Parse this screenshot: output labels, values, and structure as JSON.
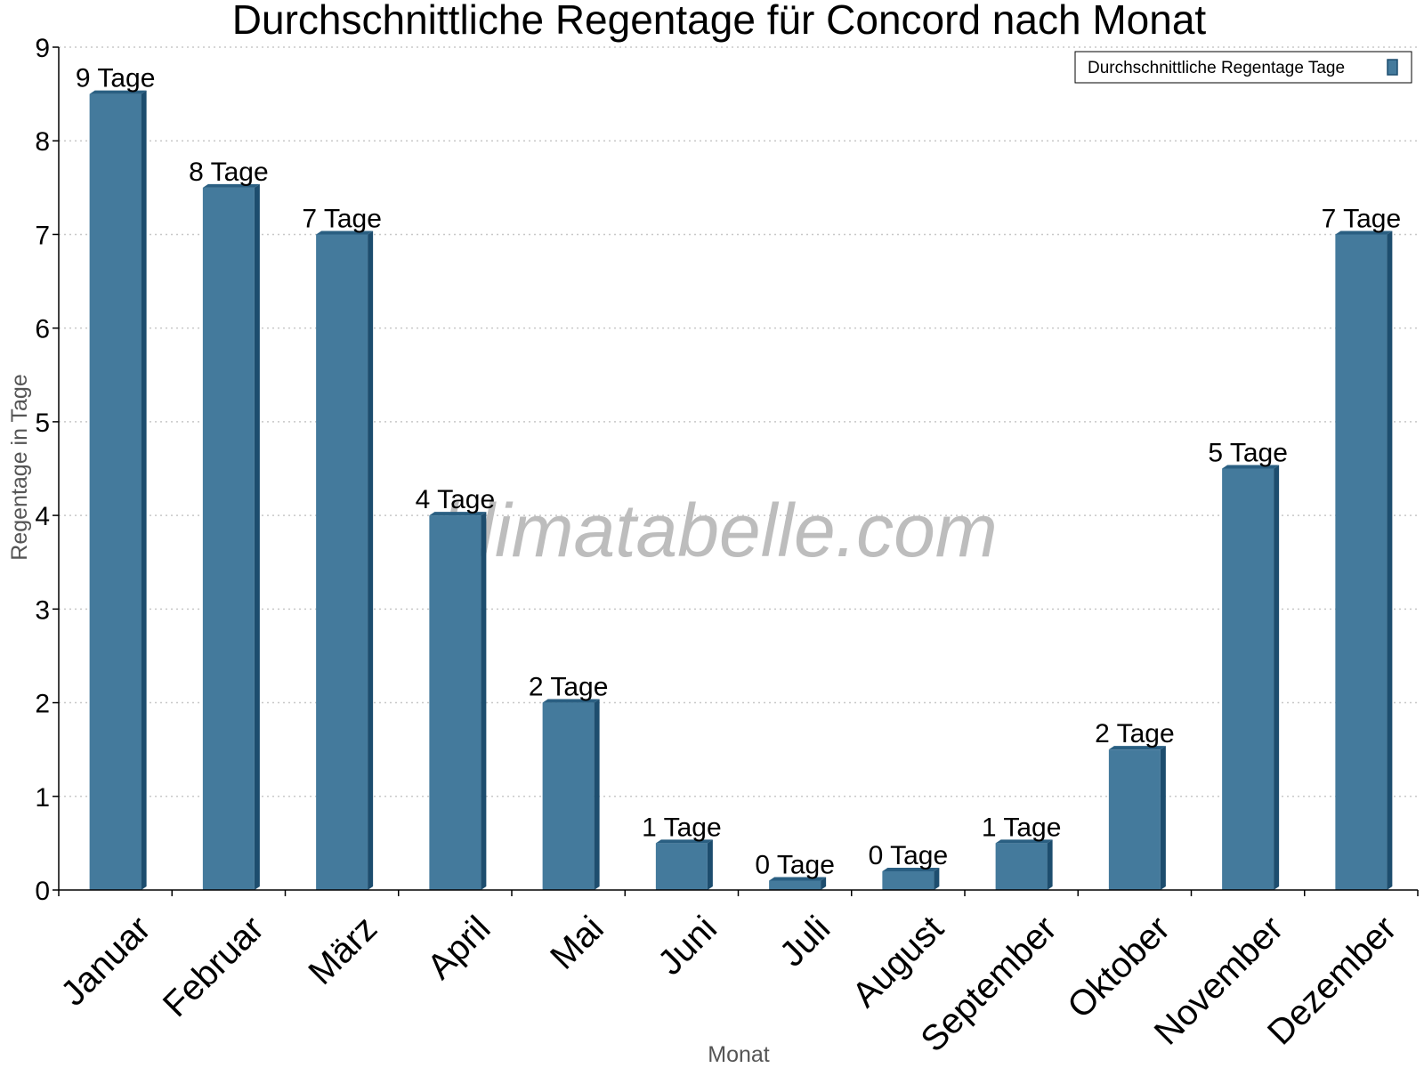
{
  "chart_data": {
    "type": "bar",
    "title": "Durchschnittliche Regentage für Concord nach Monat",
    "xlabel": "Monat",
    "ylabel": "Regentage in Tage",
    "categories": [
      "Januar",
      "Februar",
      "März",
      "April",
      "Mai",
      "Juni",
      "Juli",
      "August",
      "September",
      "Oktober",
      "November",
      "Dezember"
    ],
    "series": [
      {
        "name": "Durchschnittliche Regentage Tage",
        "values": [
          8.5,
          7.5,
          7.0,
          4.0,
          2.0,
          0.5,
          0.1,
          0.2,
          0.5,
          1.5,
          4.5,
          7.0
        ],
        "labels": [
          "9 Tage",
          "8 Tage",
          "7 Tage",
          "4 Tage",
          "2 Tage",
          "1 Tage",
          "0 Tage",
          "0 Tage",
          "1 Tage",
          "2 Tage",
          "5 Tage",
          "7 Tage"
        ]
      }
    ],
    "ylim": [
      0,
      9
    ],
    "yticks": [
      0,
      1,
      2,
      3,
      4,
      5,
      6,
      7,
      8,
      9
    ],
    "grid": true,
    "legend_position": "top-right",
    "colors": {
      "bar": "#447a9c",
      "bar_side": "#1d4d6e",
      "bar_top": "#2a5f82",
      "grid": "#c8c8c8"
    }
  },
  "watermark": "klimatabelle.com"
}
